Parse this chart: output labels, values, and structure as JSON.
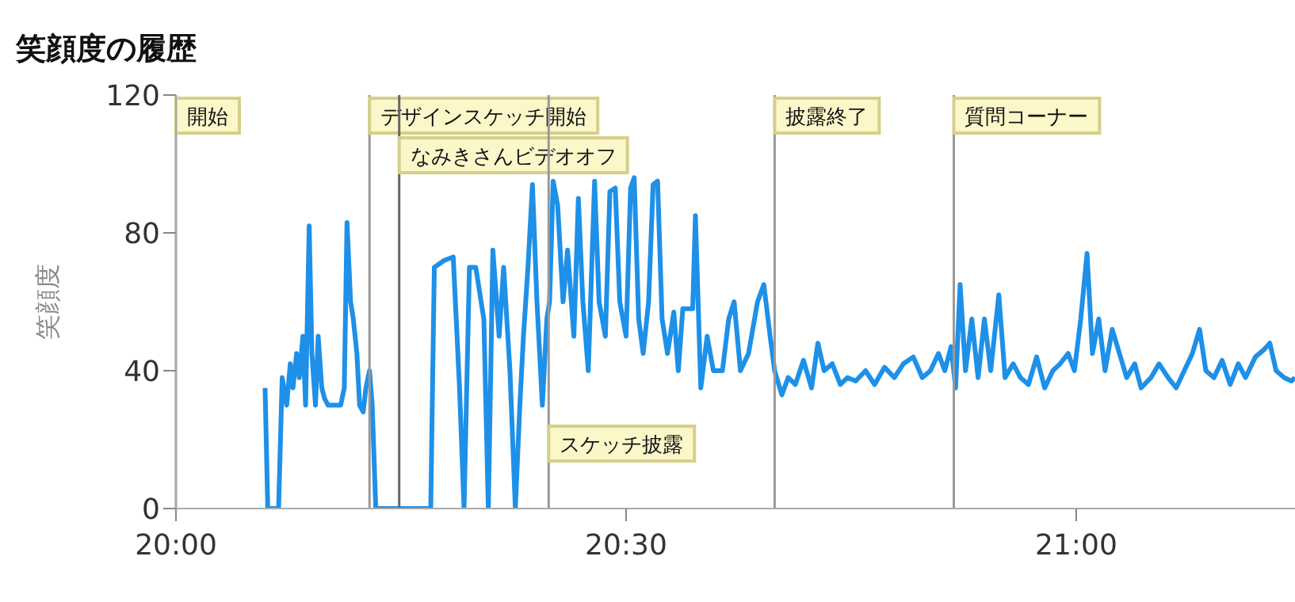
{
  "chart_data": {
    "type": "line",
    "title": "笑顔度の履歴",
    "ylabel": "笑顔度",
    "xlim": [
      20,
      21.243
    ],
    "xticks": [
      {
        "value": 20,
        "label": "20:00"
      },
      {
        "value": 20.5,
        "label": "20:30"
      },
      {
        "value": 21,
        "label": "21:00"
      }
    ],
    "ylim": [
      0,
      120
    ],
    "yticks": [
      0,
      40,
      80,
      120
    ],
    "grid": false,
    "legend": false,
    "marker": "none",
    "line_style": "solid",
    "ref_lines": [
      {
        "axis": "x",
        "value": 20,
        "label": "開始",
        "color": "#999999"
      },
      {
        "axis": "x",
        "value": 20.215,
        "label": "デザインスケッチ開始",
        "color": "#999999"
      },
      {
        "axis": "x",
        "value": 20.248,
        "label": "なみきさんビデオオフ",
        "color": "#666666"
      },
      {
        "axis": "x",
        "value": 20.414,
        "label": "スケッチ披露",
        "color": "#999999"
      },
      {
        "axis": "x",
        "value": 20.665,
        "label": "披露終了",
        "color": "#999999"
      },
      {
        "axis": "x",
        "value": 20.864,
        "label": "質問コーナー",
        "color": "#999999"
      }
    ],
    "series": [
      {
        "color": "#1e90e8",
        "x": [
          20.099,
          20.102,
          20.114,
          20.118,
          20.123,
          20.127,
          20.13,
          20.134,
          20.137,
          20.141,
          20.144,
          20.148,
          20.151,
          20.155,
          20.158,
          20.162,
          20.165,
          20.169,
          20.174,
          20.18,
          20.183,
          20.187,
          20.19,
          20.194,
          20.197,
          20.201,
          20.204,
          20.208,
          20.211,
          20.215,
          20.218,
          20.222,
          20.227,
          20.283,
          20.287,
          20.298,
          20.308,
          20.315,
          20.32,
          20.326,
          20.333,
          20.342,
          20.347,
          20.352,
          20.359,
          20.364,
          20.371,
          20.377,
          20.382,
          20.386,
          20.391,
          20.396,
          20.401,
          20.407,
          20.412,
          20.415,
          20.419,
          20.424,
          20.43,
          20.435,
          20.442,
          20.447,
          20.452,
          20.458,
          20.465,
          20.47,
          20.477,
          20.482,
          20.488,
          20.493,
          20.5,
          20.505,
          20.509,
          20.514,
          20.519,
          20.525,
          20.53,
          20.535,
          20.54,
          20.546,
          20.553,
          20.558,
          20.563,
          20.574,
          20.577,
          20.583,
          20.59,
          20.597,
          20.607,
          20.614,
          20.62,
          20.627,
          20.636,
          20.646,
          20.653,
          20.66,
          20.665,
          20.673,
          20.68,
          20.688,
          20.697,
          20.706,
          20.713,
          20.72,
          20.729,
          20.738,
          20.746,
          20.755,
          20.766,
          20.776,
          20.787,
          20.798,
          20.808,
          20.819,
          20.829,
          20.838,
          20.847,
          20.854,
          20.861,
          20.866,
          20.871,
          20.877,
          20.884,
          20.891,
          20.898,
          20.905,
          20.914,
          20.921,
          20.93,
          20.938,
          20.947,
          20.956,
          20.965,
          20.974,
          20.982,
          20.991,
          20.998,
          21.005,
          21.012,
          21.018,
          21.025,
          21.032,
          21.04,
          21.048,
          21.056,
          21.065,
          21.072,
          21.083,
          21.092,
          21.102,
          21.111,
          21.12,
          21.129,
          21.137,
          21.144,
          21.153,
          21.162,
          21.171,
          21.18,
          21.188,
          21.199,
          21.208,
          21.215,
          21.222,
          21.231,
          21.239,
          21.243
        ],
        "values": [
          35,
          0,
          0,
          38,
          30,
          42,
          35,
          45,
          38,
          50,
          30,
          82,
          45,
          30,
          50,
          35,
          32,
          30,
          30,
          30,
          30,
          35,
          83,
          60,
          55,
          45,
          30,
          28,
          35,
          40,
          30,
          0,
          0,
          0,
          70,
          72,
          73,
          35,
          0,
          70,
          70,
          55,
          0,
          75,
          50,
          70,
          40,
          0,
          30,
          50,
          70,
          94,
          60,
          30,
          55,
          60,
          95,
          88,
          60,
          75,
          50,
          90,
          60,
          40,
          95,
          60,
          50,
          92,
          93,
          60,
          50,
          93,
          96,
          55,
          45,
          60,
          94,
          95,
          55,
          45,
          57,
          40,
          58,
          58,
          85,
          35,
          50,
          40,
          40,
          55,
          60,
          40,
          45,
          60,
          65,
          50,
          40,
          33,
          38,
          36,
          43,
          35,
          48,
          40,
          42,
          36,
          38,
          37,
          40,
          36,
          41,
          38,
          42,
          44,
          38,
          40,
          45,
          40,
          47,
          35,
          65,
          40,
          55,
          38,
          55,
          40,
          62,
          38,
          42,
          38,
          36,
          44,
          35,
          40,
          42,
          45,
          40,
          55,
          74,
          45,
          55,
          40,
          52,
          45,
          38,
          42,
          35,
          38,
          42,
          38,
          35,
          40,
          45,
          52,
          40,
          38,
          43,
          36,
          42,
          38,
          44,
          46,
          48,
          40,
          38,
          37,
          38
        ]
      }
    ]
  }
}
